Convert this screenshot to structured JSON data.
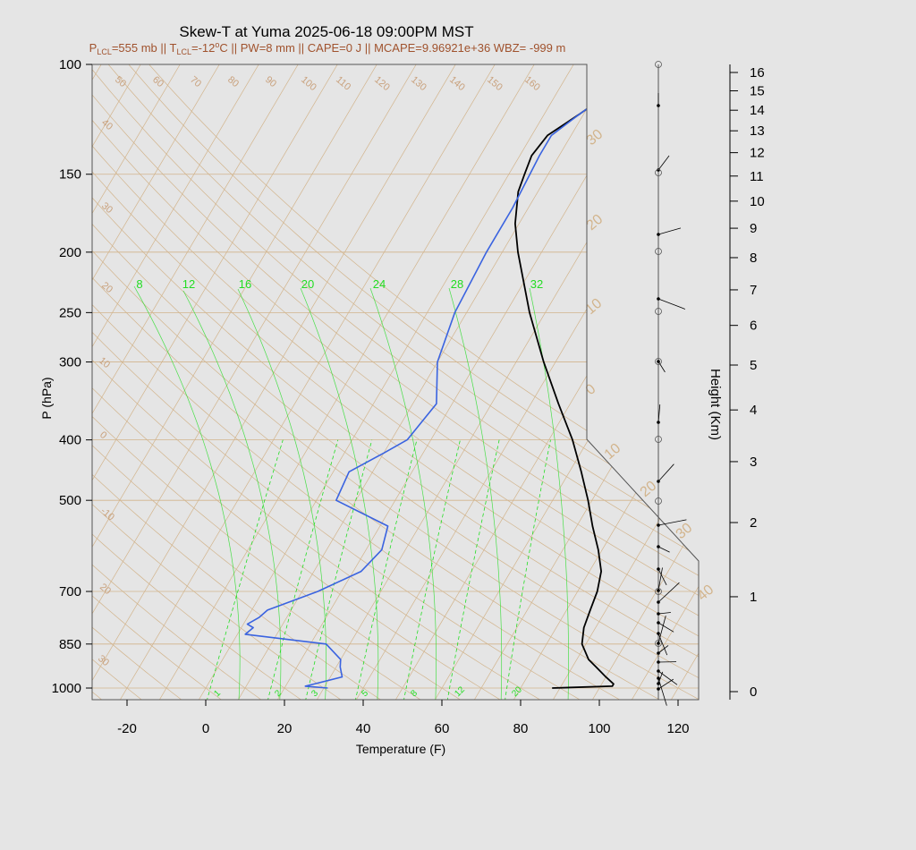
{
  "chart_data": {
    "type": "line",
    "title": "Skew-T at Yuma 2025-06-18 09:00PM MST",
    "subtitle": {
      "p_lcl": "P",
      "p_lcl_sub": "LCL",
      "p_lcl_val": "=555 mb || T",
      "t_lcl_sub": "LCL",
      "t_lcl_val": "=-12",
      "deg": "o",
      "rest": "C || PW=8 mm || CAPE=0 J || MCAPE=9.96921e+36 WBZ= -999 m"
    },
    "xlabel": "Temperature (F)",
    "ylabel": "P (hPa)",
    "y2label": "Height (Km)",
    "x_ticks": [
      "-20",
      "0",
      "20",
      "40",
      "60",
      "80",
      "100",
      "120"
    ],
    "p_ticks": [
      "100",
      "150",
      "200",
      "250",
      "300",
      "400",
      "500",
      "700",
      "850",
      "1000"
    ],
    "height_ticks": [
      "0",
      "1",
      "2",
      "3",
      "4",
      "5",
      "6",
      "7",
      "8",
      "9",
      "10",
      "11",
      "12",
      "13",
      "14",
      "15",
      "16"
    ],
    "mixing_ratio_top_labels": [
      "8",
      "12",
      "16",
      "20",
      "24",
      "28",
      "32"
    ],
    "mixing_ratio_bottom_labels": [
      "1",
      "2",
      "3",
      "5",
      "8",
      "12",
      "20"
    ],
    "isotherm_labels_left": [
      "40",
      "30",
      "20",
      "10",
      "0",
      "-10",
      "20",
      "30"
    ],
    "isotherm_labels_right": [
      "30",
      "20",
      "10",
      "0",
      "10",
      "20",
      "30",
      "40"
    ],
    "dry_adiabat_labels": [
      "50",
      "60",
      "70",
      "80",
      "90",
      "100",
      "110",
      "120",
      "130",
      "140",
      "150",
      "160"
    ],
    "colors": {
      "temperature": "#000000",
      "dewpoint": "#3a63e0",
      "mixing_ratio": "#22dd22",
      "grid": "#d2b48c"
    },
    "series": [
      {
        "name": "",
        "variable": "temperature_F",
        "p_hpa": [
          1000,
          993,
          985,
          960,
          925,
          900,
          850,
          800,
          750,
          700,
          650,
          600,
          550,
          500,
          450,
          400,
          350,
          300,
          250,
          200,
          180,
          160,
          150,
          140,
          130,
          120,
          110,
          100
        ],
        "values": [
          88,
          103,
          103,
          100,
          96,
          93,
          89,
          87,
          86,
          85,
          83,
          79,
          74,
          69,
          63,
          56,
          47,
          37,
          26,
          14,
          9,
          5,
          4,
          3,
          4,
          9,
          14,
          20
        ]
      },
      {
        "name": "",
        "variable": "dewpoint_F",
        "p_hpa": [
          1000,
          993,
          985,
          960,
          925,
          900,
          850,
          820,
          800,
          790,
          770,
          750,
          700,
          650,
          600,
          550,
          500,
          450,
          420,
          400,
          350,
          300,
          250,
          200,
          170,
          140,
          130,
          120,
          110,
          100
        ],
        "values": [
          31,
          25,
          27,
          33,
          31,
          30,
          24,
          2,
          3,
          1,
          3,
          4,
          14,
          22,
          24,
          22,
          5,
          4,
          10,
          14,
          16,
          10,
          7,
          6,
          6,
          5,
          5,
          9,
          14,
          20
        ]
      }
    ]
  }
}
